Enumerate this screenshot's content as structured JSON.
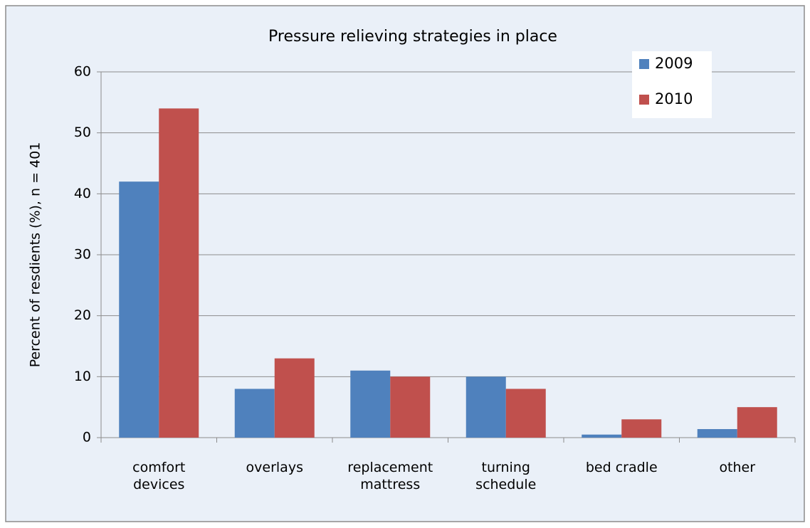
{
  "chart_data": {
    "type": "bar",
    "title": "Pressure relieving strategies in place",
    "y_label": "Percent of resdients (%), n = 401",
    "categories": [
      "comfort\ndevices",
      "overlays",
      "replacement\nmattress",
      "turning\nschedule",
      "bed cradle",
      "other"
    ],
    "series": [
      {
        "name": "2009",
        "color": "#4f81bd",
        "values": [
          42,
          8,
          11,
          10,
          0.5,
          1.4
        ]
      },
      {
        "name": "2010",
        "color": "#c0504d",
        "values": [
          54,
          13,
          10,
          8,
          3,
          5
        ]
      }
    ],
    "ylim": [
      0,
      60
    ],
    "yticks": [
      0,
      10,
      20,
      30,
      40,
      50,
      60
    ],
    "grid": true,
    "legend": "top-right"
  }
}
